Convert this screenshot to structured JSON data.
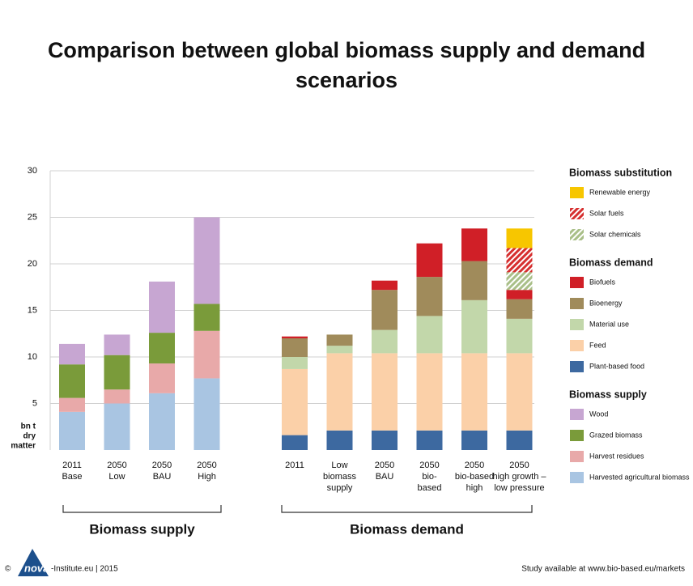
{
  "chart_data": {
    "type": "stacked_bar",
    "title": [
      "Comparison between global biomass supply and demand",
      "scenarios"
    ],
    "ylim": [
      0,
      30
    ],
    "yticks": [
      5,
      10,
      15,
      20,
      25,
      30
    ],
    "grid": true,
    "y_unit": [
      "bn t",
      "dry",
      "matter"
    ],
    "category_groups": [
      {
        "label": "Biomass supply",
        "categories": [
          [
            "2011",
            "Base"
          ],
          [
            "2050",
            "Low"
          ],
          [
            "2050",
            "BAU"
          ],
          [
            "2050",
            "High"
          ]
        ]
      },
      {
        "label": "Biomass demand",
        "categories": [
          [
            "2011"
          ],
          [
            "Low",
            "biomass",
            "supply"
          ],
          [
            "2050",
            "BAU"
          ],
          [
            "2050",
            "bio-",
            "based"
          ],
          [
            "2050",
            "bio-based",
            "high"
          ],
          [
            "2050",
            "high growth –",
            "low pressure"
          ]
        ]
      }
    ],
    "legend_groups": [
      {
        "title": "Biomass substitution",
        "series": [
          {
            "name": "Renewable energy",
            "color": "#f7c600",
            "values": [
              null,
              null,
              null,
              null,
              null,
              null,
              null,
              null,
              null,
              2.1
            ]
          },
          {
            "name": "Solar fuels",
            "color": "#d62f2f",
            "pattern": "hatch",
            "values": [
              null,
              null,
              null,
              null,
              null,
              null,
              null,
              null,
              null,
              2.6
            ]
          },
          {
            "name": "Solar chemicals",
            "color": "#a9bf88",
            "pattern": "hatch",
            "values": [
              null,
              null,
              null,
              null,
              null,
              null,
              null,
              null,
              null,
              1.9
            ]
          }
        ]
      },
      {
        "title": "Biomass demand",
        "series": [
          {
            "name": "Biofuels",
            "color": "#d01f27",
            "values": [
              null,
              null,
              null,
              null,
              0.2,
              null,
              1.0,
              3.6,
              3.5,
              1.0
            ]
          },
          {
            "name": "Bioenergy",
            "color": "#a08b5b",
            "values": [
              null,
              null,
              null,
              null,
              2.0,
              1.2,
              4.3,
              4.2,
              4.2,
              2.1
            ]
          },
          {
            "name": "Material use",
            "color": "#c2d7aa",
            "values": [
              null,
              null,
              null,
              null,
              1.3,
              0.8,
              2.5,
              4.0,
              5.7,
              3.7
            ]
          },
          {
            "name": "Feed",
            "color": "#fbd0a8",
            "values": [
              null,
              null,
              null,
              null,
              7.1,
              8.3,
              8.3,
              8.3,
              8.3,
              8.3
            ]
          },
          {
            "name": "Plant-based food",
            "color": "#3d69a0",
            "values": [
              null,
              null,
              null,
              null,
              1.6,
              2.1,
              2.1,
              2.1,
              2.1,
              2.1
            ]
          }
        ]
      },
      {
        "title": "Biomass supply",
        "series": [
          {
            "name": "Wood",
            "color": "#c7a6d2",
            "values": [
              2.2,
              2.2,
              5.5,
              9.3,
              null,
              null,
              null,
              null,
              null,
              null
            ]
          },
          {
            "name": "Grazed biomass",
            "color": "#7a9b3a",
            "values": [
              3.6,
              3.7,
              3.3,
              2.9,
              null,
              null,
              null,
              null,
              null,
              null
            ]
          },
          {
            "name": "Harvest residues",
            "color": "#e8a9a9",
            "values": [
              1.5,
              1.5,
              3.2,
              5.1,
              null,
              null,
              null,
              null,
              null,
              null
            ]
          },
          {
            "name": "Harvested agricultural biomass",
            "color": "#a9c5e2",
            "values": [
              4.1,
              5.0,
              6.1,
              7.7,
              null,
              null,
              null,
              null,
              null,
              null
            ]
          }
        ]
      }
    ],
    "footer": {
      "copyright": "©",
      "logo": "nova",
      "left": "-Institute.eu | 2015",
      "right": "Study available at www.bio-based.eu/markets"
    }
  }
}
